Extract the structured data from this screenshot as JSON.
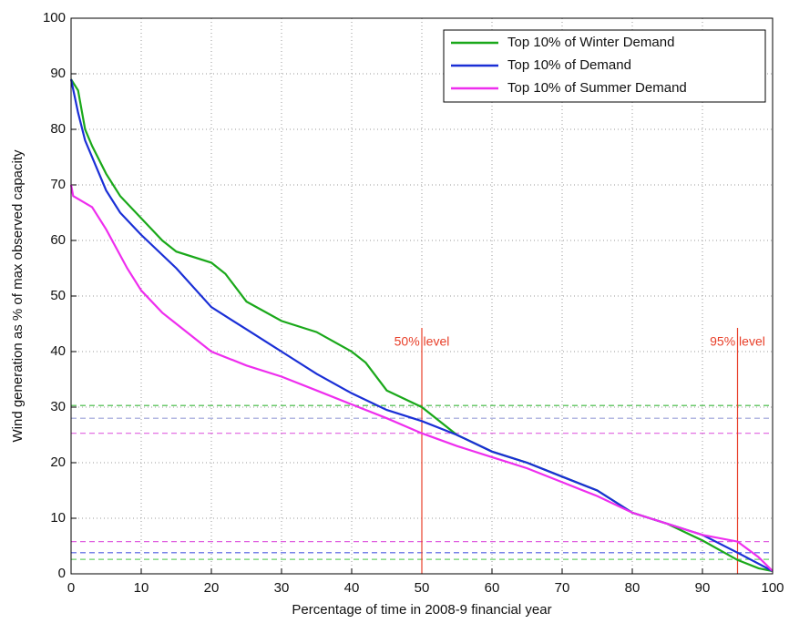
{
  "chart_data": {
    "type": "line",
    "xlabel": "Percentage of time in 2008-9 financial year",
    "ylabel": "Wind generation as % of max observed capacity",
    "xlim": [
      0,
      100
    ],
    "ylim": [
      0,
      100
    ],
    "xticks": [
      0,
      10,
      20,
      30,
      40,
      50,
      60,
      70,
      80,
      90,
      100
    ],
    "yticks": [
      0,
      10,
      20,
      30,
      40,
      50,
      60,
      70,
      80,
      90,
      100
    ],
    "grid": true,
    "legend": "upper right",
    "series": [
      {
        "name": "Top 10% of Winter Demand",
        "color": "#1aa81a",
        "x": [
          0,
          1,
          2,
          3,
          5,
          7,
          10,
          13,
          15,
          20,
          22,
          25,
          30,
          35,
          40,
          42,
          45,
          50,
          55,
          60,
          65,
          70,
          75,
          80,
          85,
          90,
          95,
          98,
          100
        ],
        "values": [
          89,
          87,
          80,
          77,
          72,
          68,
          64,
          60,
          58,
          56,
          54,
          49,
          45.5,
          43.5,
          40,
          38,
          33,
          30,
          25,
          22,
          20,
          17.5,
          15,
          11,
          9,
          6,
          2.5,
          1,
          0.5
        ]
      },
      {
        "name": "Top 10% of Demand",
        "color": "#1a2fd6",
        "x": [
          0,
          1,
          2,
          5,
          7,
          10,
          15,
          20,
          25,
          30,
          35,
          40,
          45,
          50,
          55,
          60,
          65,
          70,
          75,
          80,
          85,
          90,
          95,
          100
        ],
        "values": [
          89,
          83,
          78,
          69,
          65,
          61,
          55,
          48,
          44,
          40,
          36,
          32.5,
          29.5,
          27.5,
          25,
          22,
          20,
          17.5,
          15,
          11,
          9,
          7,
          3.8,
          0.5
        ]
      },
      {
        "name": "Top 10% of Summer Demand",
        "color": "#ee2eee",
        "x": [
          0,
          0.3,
          3,
          5,
          8,
          10,
          13,
          15,
          20,
          25,
          30,
          35,
          40,
          45,
          50,
          55,
          60,
          65,
          70,
          75,
          80,
          85,
          90,
          95,
          98,
          100
        ],
        "values": [
          70,
          68,
          66,
          62,
          55,
          51,
          47,
          45,
          40,
          37.5,
          35.5,
          33,
          30.5,
          28,
          25.3,
          23,
          21,
          19,
          16.5,
          14,
          11,
          9,
          7,
          5.8,
          3,
          0.5
        ]
      }
    ],
    "reference_lines": [
      {
        "value": 30.3,
        "color": "#3cb83c"
      },
      {
        "value": 28,
        "color": "#9aa0d8"
      },
      {
        "value": 25.3,
        "color": "#e060e0"
      },
      {
        "value": 5.8,
        "color": "#e060e0"
      },
      {
        "value": 3.8,
        "color": "#4a5ae0"
      },
      {
        "value": 2.6,
        "color": "#6cd06c"
      }
    ],
    "annotations": [
      {
        "x": 50,
        "label": "50% level",
        "color": "#e8402a"
      },
      {
        "x": 95,
        "label": "95% level",
        "color": "#e8402a"
      }
    ]
  }
}
